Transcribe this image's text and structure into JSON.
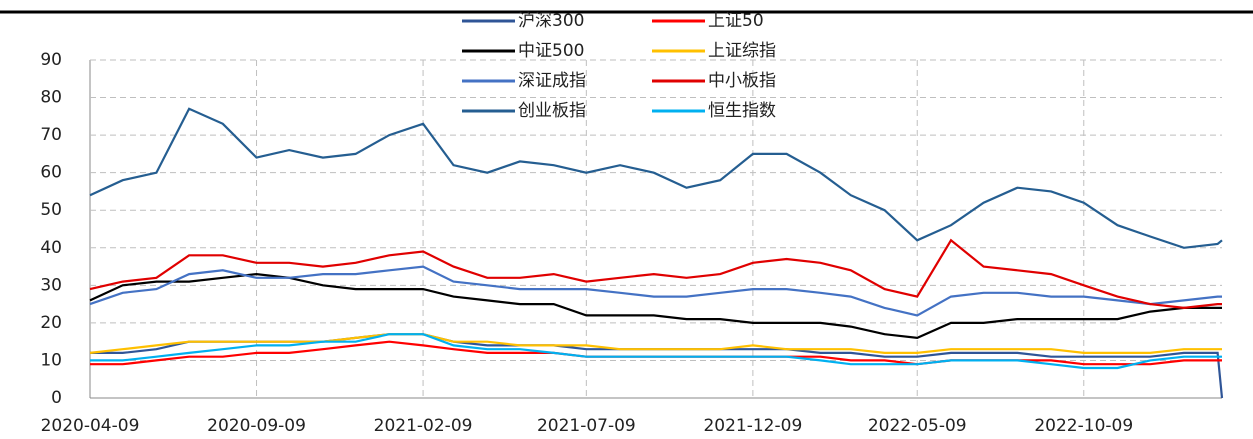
{
  "chart_data": {
    "type": "line",
    "x": [
      "2020-04-09",
      "2020-05-09",
      "2020-06-09",
      "2020-07-09",
      "2020-08-09",
      "2020-09-09",
      "2020-10-09",
      "2020-11-09",
      "2020-12-09",
      "2021-01-09",
      "2021-02-09",
      "2021-03-09",
      "2021-04-09",
      "2021-05-09",
      "2021-06-09",
      "2021-07-09",
      "2021-08-09",
      "2021-09-09",
      "2021-10-09",
      "2021-11-09",
      "2021-12-09",
      "2022-01-09",
      "2022-02-09",
      "2022-03-09",
      "2022-04-09",
      "2022-05-09",
      "2022-06-09",
      "2022-07-09",
      "2022-08-09",
      "2022-09-09",
      "2022-10-09",
      "2022-11-09",
      "2022-12-09",
      "2023-01-09",
      "2023-02-09",
      "2023-02-13"
    ],
    "series": [
      {
        "name": "沪深300",
        "color": "#2f5597",
        "values": [
          12,
          12,
          13,
          15,
          15,
          15,
          15,
          15,
          16,
          17,
          17,
          15,
          14,
          14,
          14,
          13,
          13,
          13,
          13,
          13,
          13,
          13,
          12,
          12,
          11,
          11,
          12,
          12,
          12,
          11,
          11,
          11,
          11,
          12,
          12,
          0
        ]
      },
      {
        "name": "上证50",
        "color": "#ff0000",
        "values": [
          9,
          9,
          10,
          11,
          11,
          12,
          12,
          13,
          14,
          15,
          14,
          13,
          12,
          12,
          12,
          11,
          11,
          11,
          11,
          11,
          11,
          11,
          11,
          10,
          10,
          9,
          10,
          10,
          10,
          10,
          9,
          9,
          9,
          10,
          10,
          10
        ]
      },
      {
        "name": "中证500",
        "color": "#000000",
        "values": [
          26,
          30,
          31,
          31,
          32,
          33,
          32,
          30,
          29,
          29,
          29,
          27,
          26,
          25,
          25,
          22,
          22,
          22,
          21,
          21,
          20,
          20,
          20,
          19,
          17,
          16,
          20,
          20,
          21,
          21,
          21,
          21,
          23,
          24,
          24,
          24
        ]
      },
      {
        "name": "上证综指",
        "color": "#ffc000",
        "values": [
          12,
          13,
          14,
          15,
          15,
          15,
          15,
          15,
          16,
          17,
          17,
          15,
          15,
          14,
          14,
          14,
          13,
          13,
          13,
          13,
          14,
          13,
          13,
          13,
          12,
          12,
          13,
          13,
          13,
          13,
          12,
          12,
          12,
          13,
          13,
          13
        ]
      },
      {
        "name": "深证成指",
        "color": "#4472c4",
        "values": [
          25,
          28,
          29,
          33,
          34,
          32,
          32,
          33,
          33,
          34,
          35,
          31,
          30,
          29,
          29,
          29,
          28,
          27,
          27,
          28,
          29,
          29,
          28,
          27,
          24,
          22,
          27,
          28,
          28,
          27,
          27,
          26,
          25,
          26,
          27,
          27
        ]
      },
      {
        "name": "中小板指",
        "color": "#e00000",
        "values": [
          29,
          31,
          32,
          38,
          38,
          36,
          36,
          35,
          36,
          38,
          39,
          35,
          32,
          32,
          33,
          31,
          32,
          33,
          32,
          33,
          36,
          37,
          36,
          34,
          29,
          27,
          42,
          35,
          34,
          33,
          30,
          27,
          25,
          24,
          25,
          25
        ]
      },
      {
        "name": "创业板指",
        "color": "#255e91",
        "values": [
          54,
          58,
          60,
          77,
          73,
          64,
          66,
          64,
          65,
          70,
          73,
          62,
          60,
          63,
          62,
          60,
          62,
          60,
          56,
          58,
          65,
          65,
          60,
          54,
          50,
          42,
          46,
          52,
          56,
          55,
          52,
          46,
          43,
          40,
          41,
          42
        ]
      },
      {
        "name": "恒生指数",
        "color": "#00b0f0",
        "values": [
          10,
          10,
          11,
          12,
          13,
          14,
          14,
          15,
          15,
          17,
          17,
          14,
          13,
          13,
          12,
          11,
          11,
          11,
          11,
          11,
          11,
          11,
          10,
          9,
          9,
          9,
          10,
          10,
          10,
          9,
          8,
          8,
          10,
          11,
          11,
          11
        ]
      }
    ],
    "xlim": [
      "2020-04-09",
      "2023-02-13"
    ],
    "xticks": [
      "2020-04-09",
      "2020-09-09",
      "2021-02-09",
      "2021-07-09",
      "2021-12-09",
      "2022-05-09",
      "2022-10-09"
    ],
    "ylim": [
      0,
      90
    ],
    "yticks": [
      0,
      10,
      20,
      30,
      40,
      50,
      60,
      70,
      80,
      90
    ],
    "grid": true,
    "legend": "top"
  }
}
